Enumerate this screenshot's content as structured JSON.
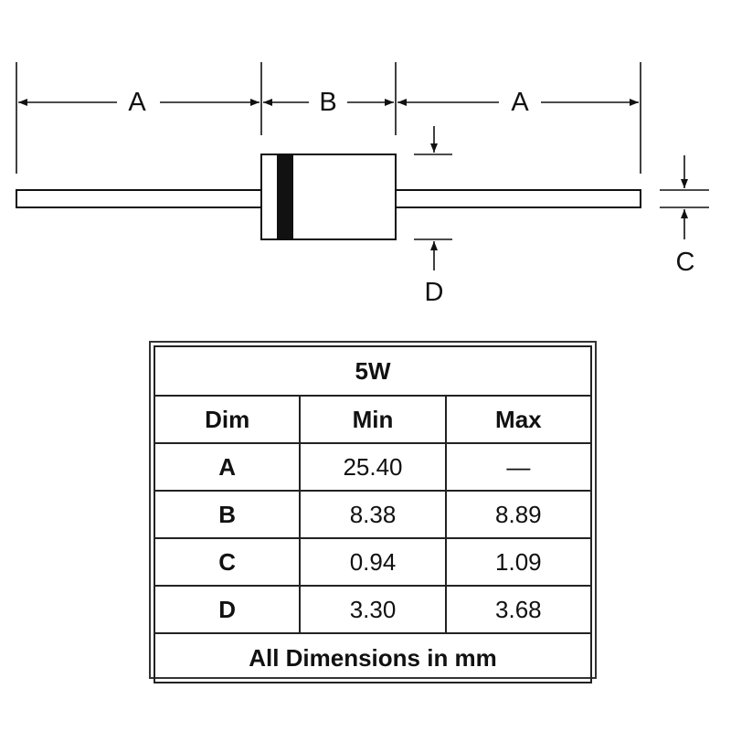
{
  "diagram": {
    "labels": {
      "a_left": "A",
      "b": "B",
      "a_right": "A",
      "c": "C",
      "d": "D"
    }
  },
  "table": {
    "title": "5W",
    "headers": [
      "Dim",
      "Min",
      "Max"
    ],
    "rows": [
      [
        "A",
        "25.40",
        "—"
      ],
      [
        "B",
        "8.38",
        "8.89"
      ],
      [
        "C",
        "0.94",
        "1.09"
      ],
      [
        "D",
        "3.30",
        "3.68"
      ]
    ],
    "footer": "All Dimensions in mm"
  }
}
